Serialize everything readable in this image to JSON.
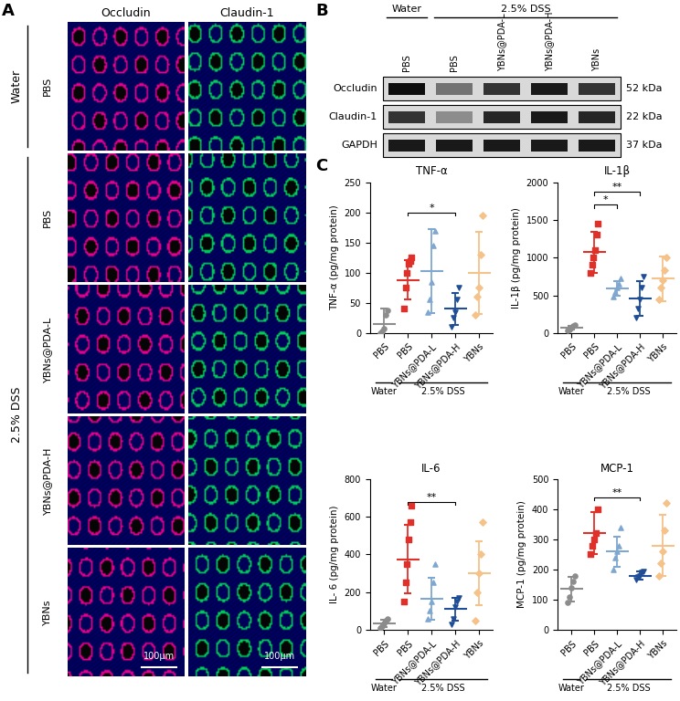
{
  "figure": {
    "panel_labels": [
      "A",
      "B",
      "C"
    ],
    "panel_A": {
      "columns": [
        "Occludin",
        "Claudin-1"
      ],
      "groups": [
        {
          "label": "Water",
          "rows": [
            "PBS"
          ]
        },
        {
          "label": "2.5% DSS",
          "rows": [
            "PBS",
            "YBNs@PDA-L",
            "YBNs@PDA-H",
            "YBNs"
          ]
        }
      ],
      "scale_bars": [
        "100μm",
        "100μm"
      ]
    },
    "panel_B": {
      "groups": [
        {
          "label": "Water",
          "lanes": [
            "PBS"
          ]
        },
        {
          "label": "2.5% DSS",
          "lanes": [
            "PBS",
            "YBNs@PDA-L",
            "YBNs@PDA-H",
            "YBNs"
          ]
        }
      ],
      "blots": [
        {
          "protein": "Occludin",
          "size": "52 kDa",
          "intensity": [
            0.95,
            0.55,
            0.8,
            0.9,
            0.8
          ]
        },
        {
          "protein": "Claudin-1",
          "size": "22 kDa",
          "intensity": [
            0.8,
            0.45,
            0.85,
            0.9,
            0.85
          ]
        },
        {
          "protein": "GAPDH",
          "size": "37 kDa",
          "intensity": [
            0.9,
            0.9,
            0.9,
            0.9,
            0.9
          ]
        }
      ]
    }
  },
  "chart_data": [
    {
      "type": "scatter",
      "title": "TNF-α",
      "y_label": "TNF-α (pg/mg protein)",
      "categories": [
        "PBS",
        "PBS",
        "YBNs@PDA-L",
        "YBNs@PDA-H",
        "YBNs"
      ],
      "groups": [
        {
          "label": "Water",
          "count": 1
        },
        {
          "label": "2.5% DSS",
          "count": 4
        }
      ],
      "colors": [
        "#8c8c8c",
        "#e0302a",
        "#7fa7cf",
        "#1f4e96",
        "#f5c28a"
      ],
      "values": [
        [
          0,
          2,
          8,
          30,
          38
        ],
        [
          40,
          75,
          100,
          115,
          120,
          125
        ],
        [
          35,
          55,
          85,
          145,
          170
        ],
        [
          10,
          25,
          35,
          55,
          75
        ],
        [
          30,
          60,
          75,
          130,
          195
        ]
      ],
      "mean": [
        15,
        88,
        103,
        40,
        100
      ],
      "sd": [
        25,
        33,
        70,
        27,
        68
      ],
      "ylim": [
        0,
        250
      ],
      "yticks": [
        0,
        50,
        100,
        150,
        200,
        250
      ],
      "annotations": [
        {
          "from": 1,
          "to": 3,
          "label": "*",
          "y": 200
        }
      ]
    },
    {
      "type": "scatter",
      "title": "IL-1β",
      "y_label": "IL-1β (pg/mg protein)",
      "categories": [
        "PBS",
        "PBS",
        "YBNs@PDA-L",
        "YBNs@PDA-H",
        "YBNs"
      ],
      "groups": [
        {
          "label": "Water",
          "count": 1
        },
        {
          "label": "2.5% DSS",
          "count": 4
        }
      ],
      "colors": [
        "#8c8c8c",
        "#e0302a",
        "#7fa7cf",
        "#1f4e96",
        "#f5c28a"
      ],
      "values": [
        [
          30,
          50,
          70,
          90,
          110
        ],
        [
          800,
          900,
          1000,
          1100,
          1300,
          1450
        ],
        [
          480,
          540,
          600,
          650,
          720
        ],
        [
          200,
          330,
          450,
          600,
          750
        ],
        [
          450,
          600,
          700,
          830,
          1000
        ]
      ],
      "mean": [
        70,
        1070,
        590,
        460,
        720
      ],
      "sd": [
        25,
        270,
        100,
        230,
        300
      ],
      "ylim": [
        0,
        2000
      ],
      "yticks": [
        0,
        500,
        1000,
        1500,
        2000
      ],
      "annotations": [
        {
          "from": 1,
          "to": 2,
          "label": "*",
          "y": 1700
        },
        {
          "from": 1,
          "to": 3,
          "label": "**",
          "y": 1870
        }
      ]
    },
    {
      "type": "scatter",
      "title": "IL-6",
      "y_label": "IL- 6 (pg/mg protein)",
      "categories": [
        "PBS",
        "PBS",
        "YBNs@PDA-L",
        "YBNs@PDA-H",
        "YBNs"
      ],
      "groups": [
        {
          "label": "Water",
          "count": 1
        },
        {
          "label": "2.5% DSS",
          "count": 4
        }
      ],
      "colors": [
        "#8c8c8c",
        "#e0302a",
        "#7fa7cf",
        "#1f4e96",
        "#f5c28a"
      ],
      "values": [
        [
          10,
          20,
          35,
          50,
          60
        ],
        [
          150,
          250,
          350,
          480,
          570,
          660
        ],
        [
          60,
          100,
          150,
          250,
          350
        ],
        [
          30,
          60,
          120,
          150,
          170
        ],
        [
          50,
          200,
          300,
          400,
          570
        ]
      ],
      "mean": [
        35,
        375,
        165,
        110,
        300
      ],
      "sd": [
        20,
        180,
        110,
        60,
        170
      ],
      "ylim": [
        0,
        800
      ],
      "yticks": [
        0,
        200,
        400,
        600,
        800
      ],
      "annotations": [
        {
          "from": 1,
          "to": 3,
          "label": "**",
          "y": 680
        }
      ]
    },
    {
      "type": "scatter",
      "title": "MCP-1",
      "y_label": "MCP-1 (pg/mg protein)",
      "categories": [
        "PBS",
        "PBS",
        "YBNs@PDA-L",
        "YBNs@PDA-H",
        "YBNs"
      ],
      "groups": [
        {
          "label": "Water",
          "count": 1
        },
        {
          "label": "2.5% DSS",
          "count": 4
        }
      ],
      "colors": [
        "#8c8c8c",
        "#e0302a",
        "#7fa7cf",
        "#1f4e96",
        "#f5c28a"
      ],
      "values": [
        [
          90,
          110,
          140,
          160,
          180
        ],
        [
          250,
          280,
          300,
          320,
          400
        ],
        [
          200,
          240,
          260,
          280,
          340
        ],
        [
          165,
          175,
          180,
          190,
          195
        ],
        [
          180,
          220,
          260,
          330,
          420
        ]
      ],
      "mean": [
        135,
        320,
        260,
        180,
        280
      ],
      "sd": [
        40,
        70,
        50,
        15,
        100
      ],
      "ylim": [
        0,
        500
      ],
      "yticks": [
        0,
        100,
        200,
        300,
        400,
        500
      ],
      "annotations": [
        {
          "from": 1,
          "to": 3,
          "label": "**",
          "y": 440
        }
      ]
    }
  ]
}
